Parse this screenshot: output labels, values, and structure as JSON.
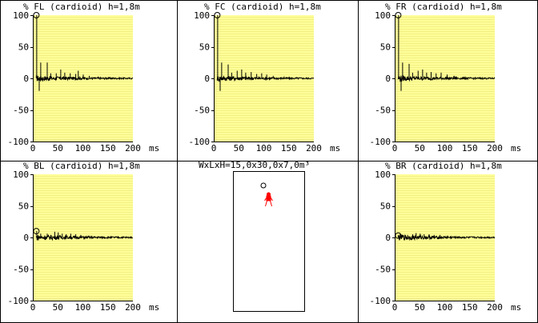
{
  "room_label": "WxLxH=15,0x30,0x7,0m³",
  "colors": {
    "plot_bg": "#ffff99",
    "stripe": "#f2ef84",
    "frame": "#000000",
    "listener": "#ff0000",
    "trace": "#000000"
  },
  "chart_data": [
    {
      "type": "line",
      "title": "FL (cardioid)  h=1,8m",
      "ylabel": "%",
      "xlabel": "ms",
      "xlim": [
        0,
        200
      ],
      "ylim": [
        -100,
        100
      ],
      "xticks": [
        "0",
        "50",
        "100",
        "150",
        "200"
      ],
      "yticks": [
        "100",
        "50",
        "0",
        "-50",
        "-100"
      ],
      "marker": {
        "x": 7,
        "y": 100
      },
      "peaks": [
        [
          7,
          100
        ],
        [
          12,
          -20
        ],
        [
          15,
          25
        ],
        [
          28,
          25
        ],
        [
          35,
          8
        ],
        [
          46,
          8
        ],
        [
          55,
          14
        ],
        [
          63,
          9
        ],
        [
          74,
          8
        ],
        [
          85,
          7
        ],
        [
          90,
          12
        ],
        [
          100,
          6
        ],
        [
          112,
          4
        ],
        [
          130,
          3
        ],
        [
          150,
          2
        ]
      ]
    },
    {
      "type": "line",
      "title": "FC (cardioid)  h=1,8m",
      "ylabel": "%",
      "xlabel": "ms",
      "xlim": [
        0,
        200
      ],
      "ylim": [
        -100,
        100
      ],
      "xticks": [
        "0",
        "50",
        "100",
        "150",
        "200"
      ],
      "yticks": [
        "100",
        "50",
        "0",
        "-50",
        "-100"
      ],
      "marker": {
        "x": 7,
        "y": 100
      },
      "peaks": [
        [
          7,
          100
        ],
        [
          12,
          -20
        ],
        [
          15,
          25
        ],
        [
          28,
          22
        ],
        [
          35,
          9
        ],
        [
          46,
          12
        ],
        [
          55,
          14
        ],
        [
          63,
          9
        ],
        [
          74,
          10
        ],
        [
          85,
          7
        ],
        [
          95,
          8
        ],
        [
          105,
          6
        ],
        [
          118,
          4
        ],
        [
          140,
          3
        ],
        [
          165,
          2
        ]
      ]
    },
    {
      "type": "line",
      "title": "FR (cardioid)  h=1,8m",
      "ylabel": "%",
      "xlabel": "ms",
      "xlim": [
        0,
        200
      ],
      "ylim": [
        -100,
        100
      ],
      "xticks": [
        "0",
        "50",
        "100",
        "150",
        "200"
      ],
      "yticks": [
        "100",
        "50",
        "0",
        "-50",
        "-100"
      ],
      "marker": {
        "x": 7,
        "y": 100
      },
      "peaks": [
        [
          7,
          100
        ],
        [
          12,
          -20
        ],
        [
          15,
          25
        ],
        [
          28,
          23
        ],
        [
          35,
          9
        ],
        [
          46,
          12
        ],
        [
          55,
          14
        ],
        [
          63,
          9
        ],
        [
          72,
          10
        ],
        [
          82,
          8
        ],
        [
          92,
          9
        ],
        [
          104,
          6
        ],
        [
          118,
          4
        ],
        [
          140,
          3
        ],
        [
          170,
          2
        ]
      ]
    },
    {
      "type": "line",
      "title": "BL (cardioid)  h=1,8m",
      "ylabel": "%",
      "xlabel": "ms",
      "xlim": [
        0,
        200
      ],
      "ylim": [
        -100,
        100
      ],
      "xticks": [
        "0",
        "50",
        "100",
        "150",
        "200"
      ],
      "yticks": [
        "100",
        "50",
        "0",
        "-50",
        "-100"
      ],
      "marker": {
        "x": 7,
        "y": 10
      },
      "peaks": [
        [
          7,
          10
        ],
        [
          15,
          6
        ],
        [
          28,
          6
        ],
        [
          35,
          4
        ],
        [
          43,
          9
        ],
        [
          50,
          8
        ],
        [
          58,
          6
        ],
        [
          66,
          5
        ],
        [
          75,
          6
        ],
        [
          85,
          5
        ],
        [
          95,
          4
        ],
        [
          110,
          3
        ],
        [
          130,
          2
        ]
      ]
    },
    {
      "type": "line",
      "title": "BR (cardioid)  h=1,8m",
      "ylabel": "%",
      "xlabel": "ms",
      "xlim": [
        0,
        200
      ],
      "ylim": [
        -100,
        100
      ],
      "xticks": [
        "0",
        "50",
        "100",
        "150",
        "200"
      ],
      "yticks": [
        "100",
        "50",
        "0",
        "-50",
        "-100"
      ],
      "marker": {
        "x": 7,
        "y": 3
      },
      "peaks": [
        [
          7,
          3
        ],
        [
          15,
          4
        ],
        [
          25,
          4
        ],
        [
          35,
          5
        ],
        [
          42,
          7
        ],
        [
          50,
          6
        ],
        [
          58,
          5
        ],
        [
          68,
          5
        ],
        [
          78,
          4
        ],
        [
          90,
          4
        ],
        [
          105,
          3
        ],
        [
          125,
          2
        ]
      ]
    }
  ]
}
